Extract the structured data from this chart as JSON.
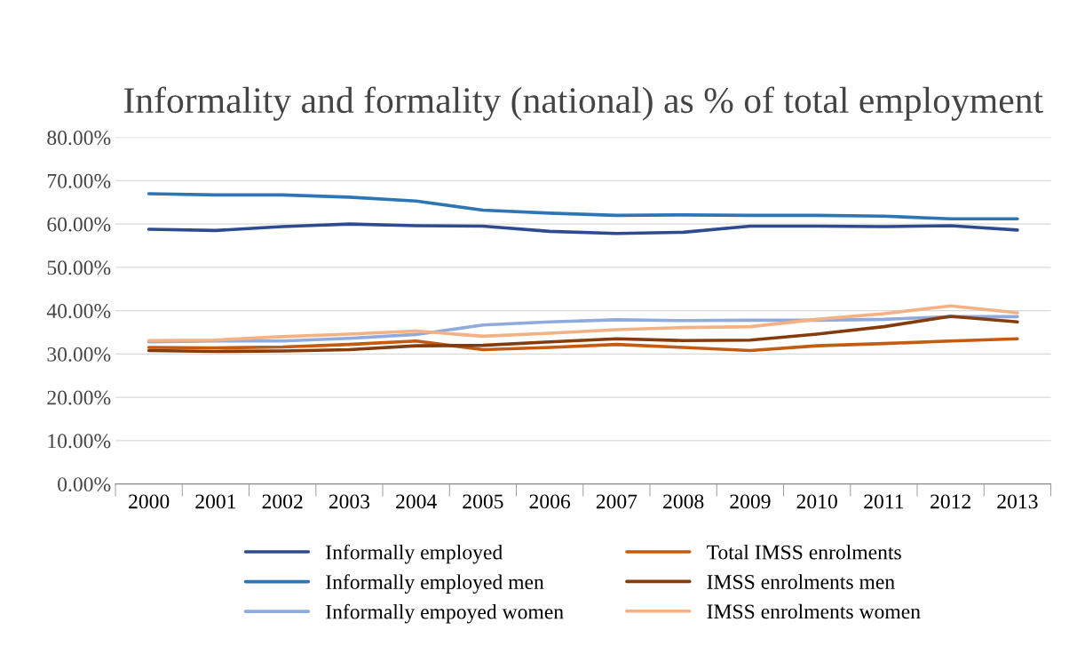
{
  "chart_data": {
    "type": "line",
    "title": "Informality and formality (national) as % of total employment",
    "categories": [
      "2000",
      "2001",
      "2002",
      "2003",
      "2004",
      "2005",
      "2006",
      "2007",
      "2008",
      "2009",
      "2010",
      "2011",
      "2012",
      "2013"
    ],
    "series": [
      {
        "name": "Informally employed",
        "color": "#2f4b8f",
        "values": [
          58.8,
          58.5,
          59.4,
          60.0,
          59.6,
          59.5,
          58.3,
          57.8,
          58.1,
          59.5,
          59.5,
          59.4,
          59.6,
          58.6
        ]
      },
      {
        "name": "Informally employed men",
        "color": "#2e75b6",
        "values": [
          67.0,
          66.7,
          66.7,
          66.2,
          65.3,
          63.2,
          62.5,
          62.0,
          62.1,
          62.0,
          62.0,
          61.8,
          61.2,
          61.2
        ]
      },
      {
        "name": "Informally empoyed women",
        "color": "#8faadc",
        "values": [
          32.8,
          33.0,
          33.0,
          33.6,
          34.5,
          36.7,
          37.4,
          37.9,
          37.7,
          37.8,
          37.8,
          38.0,
          38.6,
          38.6
        ]
      },
      {
        "name": "Total IMSS enrolments",
        "color": "#c55a11",
        "values": [
          31.5,
          31.4,
          31.6,
          32.2,
          33.0,
          31.0,
          31.5,
          32.2,
          31.5,
          30.8,
          31.9,
          32.4,
          33.0,
          33.5
        ]
      },
      {
        "name": "IMSS enrolments men",
        "color": "#843c0c",
        "values": [
          30.8,
          30.6,
          30.7,
          31.0,
          31.9,
          32.0,
          32.8,
          33.5,
          33.1,
          33.2,
          34.6,
          36.3,
          38.7,
          37.4
        ]
      },
      {
        "name": "IMSS enrolments women",
        "color": "#f4b183",
        "values": [
          33.1,
          33.2,
          34.0,
          34.6,
          35.3,
          34.1,
          34.8,
          35.6,
          36.1,
          36.3,
          38.0,
          39.3,
          41.1,
          39.5
        ]
      }
    ],
    "ylim": [
      0,
      80
    ],
    "yticks": [
      {
        "value": 0,
        "label": "0.00%"
      },
      {
        "value": 10,
        "label": "10.00%"
      },
      {
        "value": 20,
        "label": "20.00%"
      },
      {
        "value": 30,
        "label": "30.00%"
      },
      {
        "value": 40,
        "label": "40.00%"
      },
      {
        "value": 50,
        "label": "50.00%"
      },
      {
        "value": 60,
        "label": "60.00%"
      },
      {
        "value": 70,
        "label": "70.00%"
      },
      {
        "value": 80,
        "label": "80.00%"
      }
    ],
    "grid": "y",
    "legend": "bottom",
    "marker": "none",
    "line_style": "solid"
  }
}
